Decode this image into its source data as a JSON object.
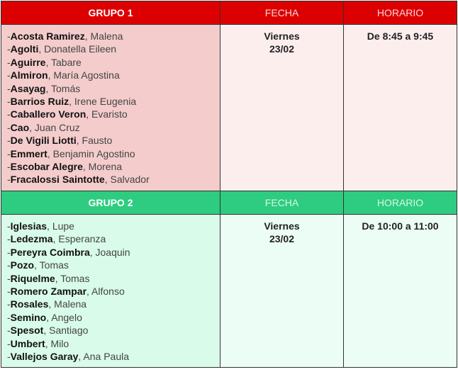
{
  "colors": {
    "group1_header": "#dd0000",
    "group1_body": "#f4cccc",
    "group2_header": "#2ecc80",
    "group2_body": "#d9fbe9"
  },
  "groups": [
    {
      "title": "GRUPO 1",
      "fecha_label": "FECHA",
      "horario_label": "HORARIO",
      "fecha_day": "Viernes",
      "fecha_date": "23/02",
      "horario": "De 8:45 a 9:45",
      "students": [
        {
          "surname": "Acosta Ramirez",
          "name": "Malena"
        },
        {
          "surname": "Agolti",
          "name": "Donatella Eileen"
        },
        {
          "surname": "Aguirre",
          "name": "Tabare"
        },
        {
          "surname": "Almiron",
          "name": "María Agostina"
        },
        {
          "surname": "Asayag",
          "name": "Tomás"
        },
        {
          "surname": "Barrios Ruiz",
          "name": "Irene Eugenia"
        },
        {
          "surname": "Caballero Veron",
          "name": "Evaristo"
        },
        {
          "surname": "Cao",
          "name": "Juan Cruz"
        },
        {
          "surname": "De Vigili Liotti",
          "name": "Fausto"
        },
        {
          "surname": "Emmert",
          "name": "Benjamin Agostino"
        },
        {
          "surname": "Escobar Alegre",
          "name": "Morena"
        },
        {
          "surname": "Fracalossi Saintotte",
          "name": "Salvador"
        }
      ]
    },
    {
      "title": "GRUPO 2",
      "fecha_label": "FECHA",
      "horario_label": "HORARIO",
      "fecha_day": "Viernes",
      "fecha_date": "23/02",
      "horario": "De 10:00 a 11:00",
      "students": [
        {
          "surname": "Iglesias",
          "name": "Lupe"
        },
        {
          "surname": "Ledezma",
          "name": "Esperanza"
        },
        {
          "surname": "Pereyra Coimbra",
          "name": "Joaquin"
        },
        {
          "surname": "Pozo",
          "name": "Tomas"
        },
        {
          "surname": "Riquelme",
          "name": "Tomas"
        },
        {
          "surname": "Romero Zampar",
          "name": "Alfonso"
        },
        {
          "surname": "Rosales",
          "name": "Malena"
        },
        {
          "surname": "Semino",
          "name": "Angelo"
        },
        {
          "surname": "Spesot",
          "name": "Santiago"
        },
        {
          "surname": "Umbert",
          "name": "Milo"
        },
        {
          "surname": "Vallejos Garay",
          "name": "Ana Paula"
        }
      ]
    }
  ]
}
